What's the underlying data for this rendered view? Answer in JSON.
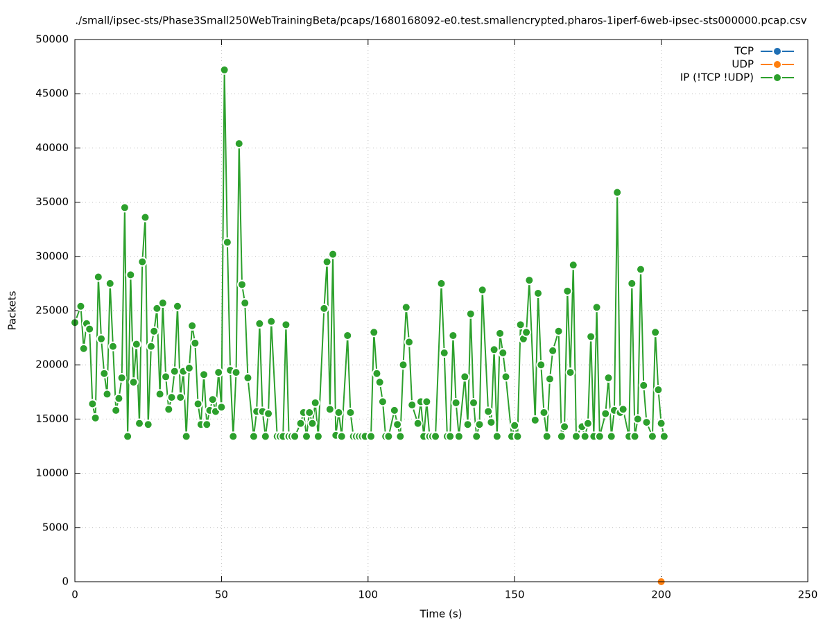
{
  "chart_data": {
    "type": "line",
    "title": "./small/ipsec-sts/Phase3Small250WebTrainingBeta/pcaps/1680168092-e0.test.smallencrypted.pharos-1iperf-6web-ipsec-sts000000.pcap.csv",
    "x_label": "Time (s)",
    "y_label": "Packets",
    "xlim": [
      0,
      250
    ],
    "xticks": [
      0,
      50,
      100,
      150,
      200,
      250
    ],
    "ylim": [
      0,
      50000
    ],
    "yticks": [
      0,
      5000,
      10000,
      15000,
      20000,
      25000,
      30000,
      35000,
      40000,
      45000,
      50000
    ],
    "grid": true,
    "legend": "top-right",
    "x": [
      0,
      2,
      3,
      4,
      5,
      6,
      7,
      8,
      9,
      10,
      11,
      12,
      13,
      14,
      15,
      16,
      17,
      18,
      19,
      20,
      21,
      22,
      23,
      24,
      25,
      26,
      27,
      28,
      29,
      30,
      31,
      32,
      33,
      34,
      35,
      36,
      37,
      38,
      39,
      40,
      41,
      42,
      43,
      44,
      45,
      46,
      47,
      48,
      49,
      50,
      51,
      52,
      53,
      54,
      55,
      56,
      57,
      58,
      59,
      61,
      62,
      63,
      64,
      65,
      66,
      67,
      69,
      70,
      71,
      72,
      73,
      74,
      75,
      77,
      78,
      79,
      80,
      81,
      82,
      83,
      85,
      86,
      87,
      88,
      89,
      90,
      91,
      93,
      94,
      95,
      96,
      97,
      98,
      99,
      101,
      102,
      103,
      104,
      105,
      106,
      107,
      109,
      110,
      111,
      112,
      113,
      114,
      115,
      117,
      118,
      119,
      120,
      121,
      122,
      123,
      125,
      126,
      127,
      128,
      129,
      130,
      131,
      133,
      134,
      135,
      136,
      137,
      138,
      139,
      141,
      142,
      143,
      144,
      145,
      146,
      147,
      149,
      150,
      151,
      152,
      153,
      154,
      155,
      157,
      158,
      159,
      160,
      161,
      162,
      163,
      165,
      166,
      167,
      168,
      169,
      170,
      171,
      173,
      174,
      175,
      176,
      177,
      178,
      179,
      181,
      182,
      183,
      184,
      185,
      186,
      187,
      189,
      190,
      191,
      192,
      193,
      194,
      195,
      197,
      198,
      199,
      200,
      201
    ],
    "series": [
      {
        "name": "TCP",
        "color": "#1f6fb4",
        "values": [
          null,
          null,
          null,
          null,
          null,
          null,
          null,
          null,
          null,
          null,
          null,
          null,
          null,
          null,
          null,
          null,
          null,
          null,
          null,
          null,
          null,
          null,
          null,
          null,
          null,
          null,
          null,
          null,
          null,
          null,
          null,
          null,
          null,
          null,
          null,
          null,
          null,
          null,
          null,
          null,
          null,
          null,
          null,
          null,
          null,
          null,
          null,
          null,
          null,
          null,
          null,
          null,
          null,
          null,
          null,
          null,
          null,
          null,
          null,
          null,
          null,
          null,
          null,
          null,
          null,
          null,
          null,
          null,
          null,
          null,
          null,
          null,
          null,
          null,
          null,
          null,
          null,
          null,
          null,
          null,
          null,
          null,
          null,
          null,
          null,
          null,
          null,
          null,
          null,
          null,
          null,
          null,
          null,
          null,
          null,
          null,
          null,
          null,
          null,
          null,
          null,
          null,
          null,
          null,
          null,
          null,
          null,
          null,
          null,
          null,
          null,
          null,
          null,
          null,
          null,
          null,
          null,
          null,
          null,
          null,
          null,
          null,
          null,
          null,
          null,
          null,
          null,
          null,
          null,
          null,
          null,
          null,
          null,
          null,
          null,
          null,
          null,
          null,
          null,
          null,
          null,
          null,
          null,
          null,
          null,
          null,
          null,
          null,
          null,
          null,
          null,
          null,
          null,
          null,
          null,
          null,
          null,
          null,
          null,
          null,
          null,
          null,
          null,
          null,
          null,
          null,
          null,
          null,
          null,
          null,
          null,
          null,
          null,
          null,
          null,
          null,
          null,
          null,
          null,
          null,
          null,
          null,
          null
        ]
      },
      {
        "name": "UDP",
        "color": "#ff7f0e",
        "values": [
          null,
          null,
          null,
          null,
          null,
          null,
          null,
          null,
          null,
          null,
          null,
          null,
          null,
          null,
          null,
          null,
          null,
          null,
          null,
          null,
          null,
          null,
          null,
          null,
          null,
          null,
          null,
          null,
          null,
          null,
          null,
          null,
          null,
          null,
          null,
          null,
          null,
          null,
          null,
          null,
          null,
          null,
          null,
          null,
          null,
          null,
          null,
          null,
          null,
          null,
          null,
          null,
          null,
          null,
          null,
          null,
          null,
          null,
          null,
          null,
          null,
          null,
          null,
          null,
          null,
          null,
          null,
          null,
          null,
          null,
          null,
          null,
          null,
          null,
          null,
          null,
          null,
          null,
          null,
          null,
          null,
          null,
          null,
          null,
          null,
          null,
          null,
          null,
          null,
          null,
          null,
          null,
          null,
          null,
          null,
          null,
          null,
          null,
          null,
          null,
          null,
          null,
          null,
          null,
          null,
          null,
          null,
          null,
          null,
          null,
          null,
          null,
          null,
          null,
          null,
          null,
          null,
          null,
          null,
          null,
          null,
          null,
          null,
          null,
          null,
          null,
          null,
          null,
          null,
          null,
          null,
          null,
          null,
          null,
          null,
          null,
          null,
          null,
          null,
          null,
          null,
          null,
          null,
          null,
          null,
          null,
          null,
          null,
          null,
          null,
          null,
          null,
          null,
          null,
          null,
          null,
          null,
          null,
          null,
          null,
          null,
          null,
          null,
          null,
          null,
          null,
          null,
          null,
          null,
          null,
          null,
          null,
          null,
          null,
          null,
          null,
          null,
          null,
          null,
          null,
          null,
          0,
          null
        ]
      },
      {
        "name": "IP (!TCP  !UDP)",
        "color": "#2ca02c",
        "values": [
          23900,
          25400,
          21500,
          23800,
          23300,
          16400,
          15100,
          28100,
          22400,
          19200,
          17300,
          27500,
          21700,
          15800,
          16900,
          18800,
          34500,
          13400,
          28300,
          18400,
          21900,
          14600,
          29500,
          33600,
          14500,
          21700,
          23100,
          25200,
          17300,
          25700,
          18900,
          15900,
          17000,
          19400,
          25400,
          17000,
          19400,
          13400,
          19700,
          23600,
          22000,
          16400,
          14500,
          19100,
          14500,
          15800,
          16800,
          15700,
          19300,
          16100,
          47200,
          31300,
          19500,
          13400,
          19300,
          40400,
          27400,
          25700,
          18800,
          13400,
          15700,
          23800,
          15700,
          13400,
          15500,
          24000,
          13400,
          13400,
          13400,
          23700,
          13400,
          13400,
          13400,
          14600,
          15600,
          13400,
          15600,
          14600,
          16500,
          13400,
          25200,
          29500,
          15900,
          30200,
          13500,
          15600,
          13400,
          22700,
          15600,
          13400,
          13400,
          13400,
          13400,
          13400,
          13400,
          23000,
          19200,
          18400,
          16600,
          13400,
          13400,
          15800,
          14500,
          13400,
          20000,
          25300,
          22100,
          16300,
          14600,
          16600,
          13400,
          16600,
          13400,
          13400,
          13400,
          27500,
          21100,
          13400,
          13400,
          22700,
          16500,
          13400,
          18900,
          14500,
          24700,
          16500,
          13400,
          14500,
          26900,
          15700,
          14700,
          21400,
          13400,
          22900,
          21100,
          18900,
          13400,
          14400,
          13400,
          23700,
          22400,
          23000,
          27800,
          14900,
          26600,
          20000,
          15600,
          13400,
          18700,
          21300,
          23100,
          13400,
          14300,
          26800,
          19300,
          29200,
          13400,
          14300,
          13400,
          14600,
          22600,
          13400,
          25300,
          13400,
          15500,
          18800,
          13400,
          15800,
          35900,
          15600,
          15900,
          13400,
          27500,
          13400,
          15000,
          28800,
          18100,
          14700,
          13400,
          23000,
          17700,
          14600,
          13400
        ]
      }
    ]
  }
}
